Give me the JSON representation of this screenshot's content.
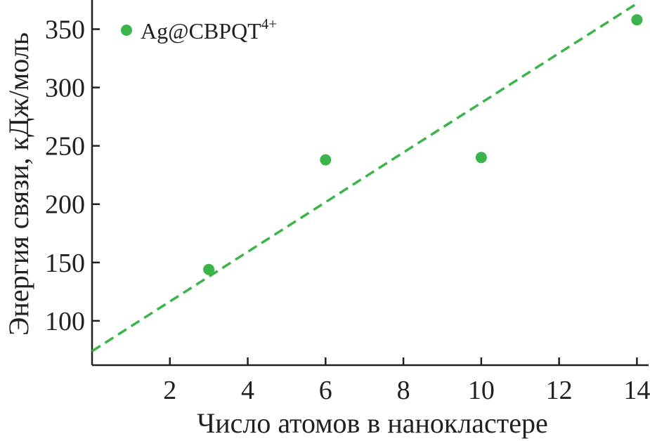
{
  "chart_data": {
    "type": "scatter",
    "title": "",
    "xlabel": "Число атомов в нанокластере",
    "ylabel": "Энергия связи, кДж/моль",
    "xlim": [
      0,
      14.3
    ],
    "ylim": [
      62,
      375
    ],
    "xticks": [
      2,
      4,
      6,
      8,
      10,
      12,
      14
    ],
    "yticks": [
      100,
      150,
      200,
      250,
      300,
      350
    ],
    "xtick_labels": [
      "2",
      "4",
      "6",
      "8",
      "10",
      "12",
      "14"
    ],
    "ytick_labels": [
      "100",
      "150",
      "200",
      "250",
      "300",
      "350"
    ],
    "grid": false,
    "legend_position": "top-left",
    "colors": {
      "series": "#3bb54a",
      "axes": "#231f20"
    },
    "series": [
      {
        "name": "Ag@CBPQT",
        "name_sup": "4+",
        "marker": "circle",
        "x": [
          3,
          6,
          10,
          14
        ],
        "y": [
          144,
          238,
          240,
          358
        ]
      }
    ],
    "fit_line": {
      "style": "dashed",
      "x": [
        0,
        14
      ],
      "y": [
        74,
        372
      ]
    }
  }
}
